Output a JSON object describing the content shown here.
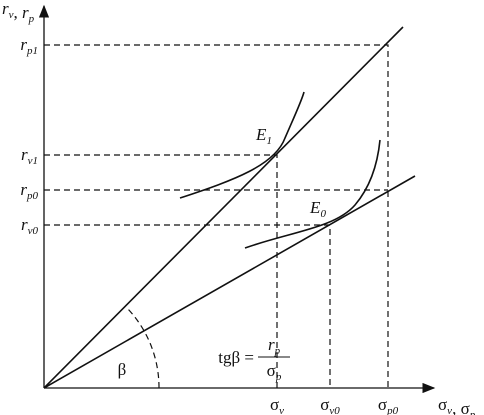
{
  "y_axis_label": {
    "items": [
      {
        "base": "r",
        "sub": "v"
      },
      {
        "base": "r",
        "sub": "p"
      }
    ],
    "separator": ", "
  },
  "x_axis_label": {
    "items": [
      {
        "base": "σ",
        "sub": "v"
      },
      {
        "base": "σ",
        "sub": "p"
      }
    ],
    "separator": ", "
  },
  "y_ticks": [
    {
      "base": "r",
      "sub": "p1"
    },
    {
      "base": "r",
      "sub": "v1"
    },
    {
      "base": "r",
      "sub": "p0"
    },
    {
      "base": "r",
      "sub": "v0"
    }
  ],
  "x_ticks": [
    {
      "base": "σ",
      "sub": "v"
    },
    {
      "base": "σ",
      "sub": "v0"
    },
    {
      "base": "σ",
      "sub": "p0"
    }
  ],
  "points": [
    {
      "base": "E",
      "sub": "1"
    },
    {
      "base": "E",
      "sub": "0"
    }
  ],
  "angle": "β",
  "formula": {
    "lhs": "tgβ = ",
    "numerator": {
      "base": "r",
      "sub": "p"
    },
    "denominator": {
      "base": "σ",
      "sub": "p"
    }
  }
}
